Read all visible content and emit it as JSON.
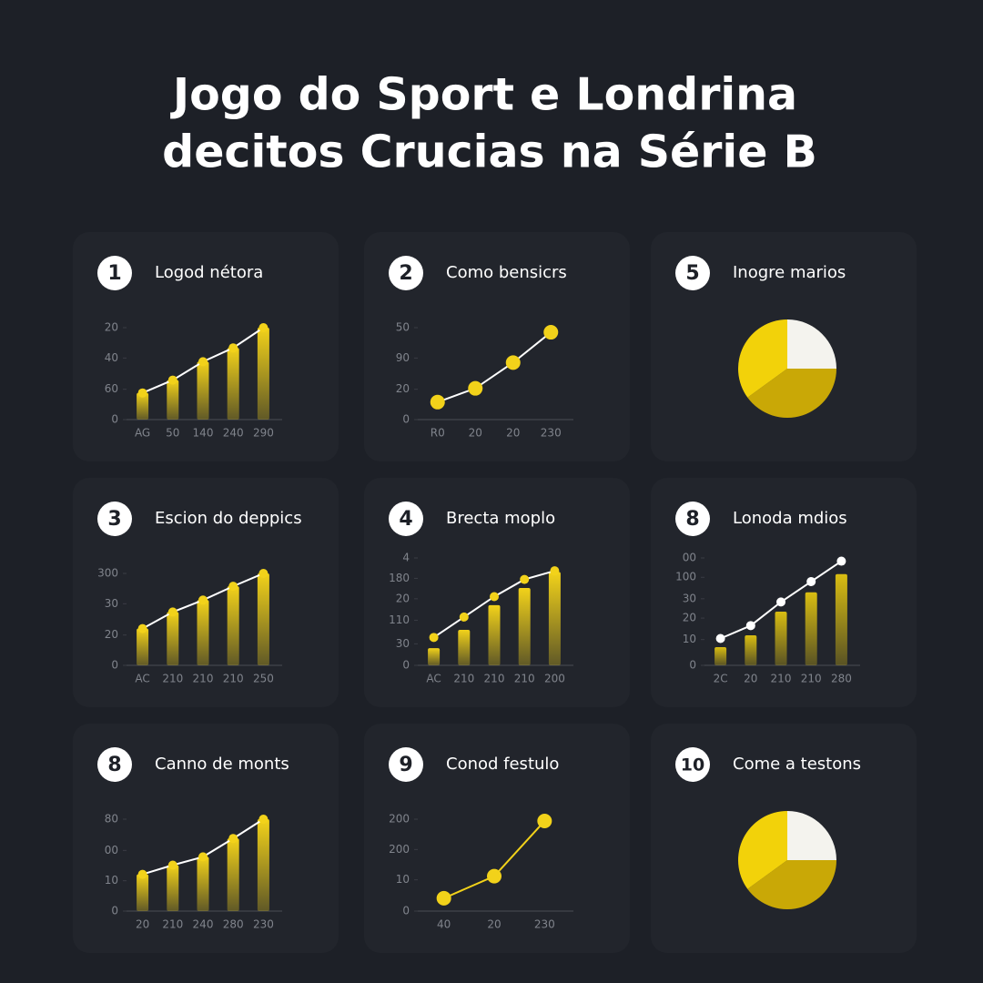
{
  "title_lines": [
    "Jogo do Sport e Londrina",
    "decitos Crucias na Série B"
  ],
  "chart_data": [
    {
      "type": "bar",
      "badge": "1",
      "title": "Logod nétora",
      "categories": [
        "AG",
        "50",
        "140",
        "240",
        "290"
      ],
      "ylim": [
        0,
        100
      ],
      "yticks": [
        0,
        {
          "value": 33,
          "label": "60"
        },
        {
          "value": 67,
          "label": "40"
        },
        {
          "value": 100,
          "label": "20"
        }
      ],
      "series": [
        {
          "kind": "bar",
          "color": "#f2d21a",
          "values": [
            29,
            43,
            63,
            78,
            100
          ]
        },
        {
          "kind": "line",
          "color": "#ffffff",
          "marker_color": "#f2d21a",
          "values": [
            29,
            43,
            63,
            78,
            100
          ]
        }
      ]
    },
    {
      "type": "line",
      "badge": "2",
      "title": "Como bensicrs",
      "categories": [
        "R0",
        "20",
        "20",
        "230"
      ],
      "ylim": [
        0,
        100
      ],
      "yticks": [
        0,
        {
          "value": 33,
          "label": "20"
        },
        {
          "value": 67,
          "label": "90"
        },
        {
          "value": 100,
          "label": "50"
        }
      ],
      "series": [
        {
          "kind": "line",
          "color": "#ffffff",
          "marker_color": "#f2d21a",
          "values": [
            19,
            34,
            62,
            95
          ]
        }
      ]
    },
    {
      "type": "pie",
      "badge": "5",
      "title": "Inogre marios",
      "values": [
        25,
        40,
        35
      ],
      "colors": [
        "#f4f3ee",
        "#c9a806",
        "#f2d20a"
      ]
    },
    {
      "type": "bar",
      "badge": "3",
      "title": "Escion do deppics",
      "categories": [
        "AC",
        "210",
        "210",
        "210",
        "250"
      ],
      "ylim": [
        0,
        100
      ],
      "yticks": [
        0,
        {
          "value": 33,
          "label": "20"
        },
        {
          "value": 67,
          "label": "30"
        },
        {
          "value": 100,
          "label": "300"
        }
      ],
      "series": [
        {
          "kind": "bar",
          "color": "#f2d21a",
          "values": [
            40,
            58,
            71,
            86,
            100
          ]
        },
        {
          "kind": "line",
          "color": "#ffffff",
          "marker_color": "#f2d21a",
          "values": [
            40,
            58,
            71,
            86,
            100
          ]
        }
      ]
    },
    {
      "type": "bar",
      "badge": "4",
      "title": "Brecta moplo",
      "categories": [
        "AC",
        "210",
        "210",
        "210",
        "200"
      ],
      "ylim": [
        0,
        100
      ],
      "yticks": [
        0,
        {
          "value": 20,
          "label": "30"
        },
        {
          "value": 42,
          "label": "110"
        },
        {
          "value": 62,
          "label": "20"
        },
        {
          "value": 81,
          "label": "180"
        },
        {
          "value": 100,
          "label": "4"
        }
      ],
      "series": [
        {
          "kind": "bar",
          "color": "#f2d21a",
          "values": [
            16,
            33,
            56,
            72,
            87
          ]
        },
        {
          "kind": "line",
          "color": "#ffffff",
          "marker_color": "#f2d21a",
          "values": [
            26,
            45,
            64,
            80,
            88
          ]
        }
      ]
    },
    {
      "type": "bar",
      "badge": "8",
      "title": "Lonoda mdios",
      "categories": [
        "2C",
        "20",
        "210",
        "210",
        "280"
      ],
      "ylim": [
        0,
        100
      ],
      "yticks": [
        0,
        {
          "value": 24,
          "label": "10"
        },
        {
          "value": 44,
          "label": "20"
        },
        {
          "value": 62,
          "label": "30"
        },
        {
          "value": 82,
          "label": "100"
        },
        {
          "value": 100,
          "label": "00"
        }
      ],
      "series": [
        {
          "kind": "bar",
          "color": "#d9bd12",
          "values": [
            17,
            28,
            50,
            68,
            85
          ]
        },
        {
          "kind": "line",
          "color": "#ffffff",
          "marker_color": "#ffffff",
          "values": [
            25,
            37,
            59,
            78,
            97
          ]
        }
      ]
    },
    {
      "type": "bar",
      "badge": "8",
      "title": "Canno de monts",
      "categories": [
        "20",
        "210",
        "240",
        "280",
        "230"
      ],
      "ylim": [
        0,
        100
      ],
      "yticks": [
        0,
        {
          "value": 33,
          "label": "10"
        },
        {
          "value": 66,
          "label": "00"
        },
        {
          "value": 100,
          "label": "80"
        }
      ],
      "series": [
        {
          "kind": "bar",
          "color": "#f2d21a",
          "values": [
            40,
            50,
            59,
            79,
            100
          ]
        },
        {
          "kind": "line",
          "color": "#ffffff",
          "marker_color": "#f2d21a",
          "values": [
            40,
            50,
            59,
            79,
            100
          ]
        }
      ]
    },
    {
      "type": "line",
      "badge": "9",
      "title": "Conod festulo",
      "categories": [
        "40",
        "20",
        "230"
      ],
      "ylim": [
        0,
        100
      ],
      "yticks": [
        0,
        {
          "value": 34,
          "label": "10"
        },
        {
          "value": 67,
          "label": "200"
        },
        {
          "value": 100,
          "label": "200"
        }
      ],
      "series": [
        {
          "kind": "line",
          "color": "#f2d21a",
          "marker_color": "#f2d21a",
          "values": [
            14,
            38,
            98
          ]
        }
      ]
    },
    {
      "type": "pie",
      "badge": "10",
      "title": "Come a testons",
      "values": [
        25,
        40,
        35
      ],
      "colors": [
        "#f4f3ee",
        "#c9a806",
        "#f2d20a"
      ]
    }
  ]
}
